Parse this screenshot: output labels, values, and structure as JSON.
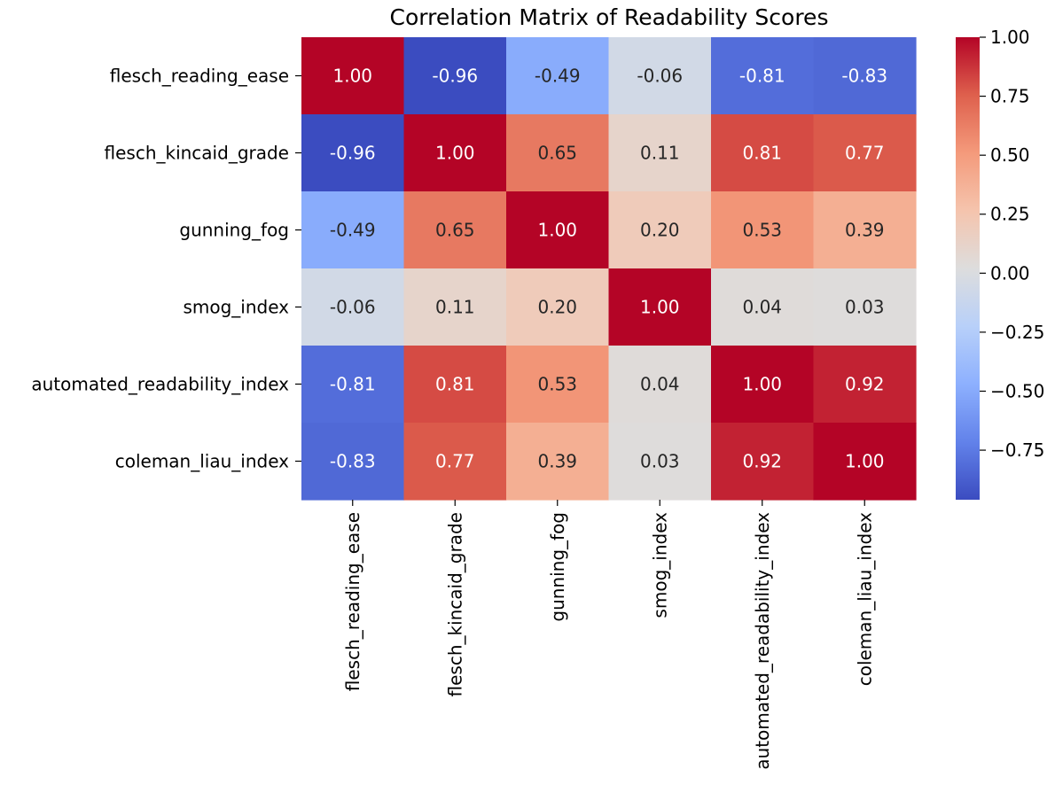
{
  "chart_data": {
    "type": "heatmap",
    "title": "Correlation Matrix of Readability Scores",
    "xlabel": "",
    "ylabel": "",
    "colormap": "coolwarm",
    "row_labels": [
      "flesch_reading_ease",
      "flesch_kincaid_grade",
      "gunning_fog",
      "smog_index",
      "automated_readability_index",
      "coleman_liau_index"
    ],
    "col_labels": [
      "flesch_reading_ease",
      "flesch_kincaid_grade",
      "gunning_fog",
      "smog_index",
      "automated_readability_index",
      "coleman_liau_index"
    ],
    "values": [
      [
        1.0,
        -0.96,
        -0.49,
        -0.06,
        -0.81,
        -0.83
      ],
      [
        -0.96,
        1.0,
        0.65,
        0.11,
        0.81,
        0.77
      ],
      [
        -0.49,
        0.65,
        1.0,
        0.2,
        0.53,
        0.39
      ],
      [
        -0.06,
        0.11,
        0.2,
        1.0,
        0.04,
        0.03
      ],
      [
        -0.81,
        0.81,
        0.53,
        0.04,
        1.0,
        0.92
      ],
      [
        -0.83,
        0.77,
        0.39,
        0.03,
        0.92,
        1.0
      ]
    ],
    "value_labels": [
      [
        "1.00",
        "-0.96",
        "-0.49",
        "-0.06",
        "-0.81",
        "-0.83"
      ],
      [
        "-0.96",
        "1.00",
        "0.65",
        "0.11",
        "0.81",
        "0.77"
      ],
      [
        "-0.49",
        "0.65",
        "1.00",
        "0.20",
        "0.53",
        "0.39"
      ],
      [
        "-0.06",
        "0.11",
        "0.20",
        "1.00",
        "0.04",
        "0.03"
      ],
      [
        "-0.81",
        "0.81",
        "0.53",
        "0.04",
        "1.00",
        "0.92"
      ],
      [
        "-0.83",
        "0.77",
        "0.39",
        "0.03",
        "0.92",
        "1.00"
      ]
    ],
    "vmin": -0.96,
    "vmax": 1.0,
    "colorbar": {
      "ticks": [
        1.0,
        0.75,
        0.5,
        0.25,
        0.0,
        -0.25,
        -0.5,
        -0.75
      ],
      "tick_labels": [
        "1.00",
        "0.75",
        "0.50",
        "0.25",
        "0.00",
        "−0.25",
        "−0.50",
        "−0.75"
      ]
    }
  }
}
